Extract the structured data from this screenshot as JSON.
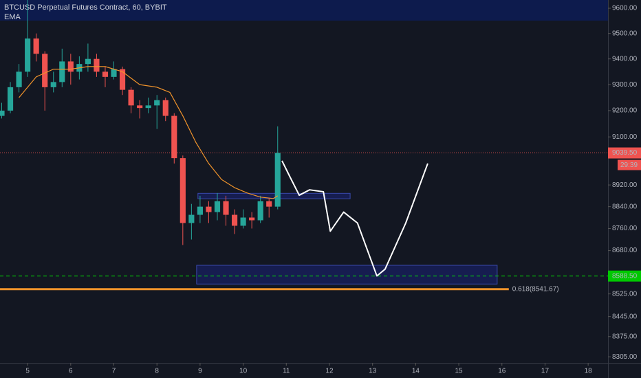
{
  "chart_data": {
    "type": "candlestick",
    "title": "BTCUSD Perpetual Futures Contract, 60, BYBIT",
    "indicator": "EMA",
    "log_scale": true,
    "colors": {
      "up": "#26a69a",
      "down": "#ef5350",
      "ema": "#f0932b",
      "drawing": "#ffffff",
      "zone": "#1a237e"
    },
    "x": [
      4.4,
      4.6,
      4.8,
      5.0,
      5.2,
      5.4,
      5.6,
      5.8,
      6.0,
      6.2,
      6.4,
      6.6,
      6.8,
      7.0,
      7.2,
      7.4,
      7.6,
      7.8,
      8.0,
      8.2,
      8.4,
      8.6,
      8.8,
      9.0,
      9.2,
      9.4,
      9.6,
      9.8,
      10.0,
      10.2,
      10.4,
      10.6,
      10.8
    ],
    "open": [
      9180,
      9200,
      9290,
      9350,
      9480,
      9420,
      9290,
      9310,
      9390,
      9350,
      9380,
      9400,
      9350,
      9330,
      9360,
      9280,
      9220,
      9210,
      9220,
      9240,
      9180,
      9020,
      8780,
      8810,
      8840,
      8820,
      8860,
      8810,
      8770,
      8800,
      8790,
      8860,
      8840
    ],
    "high": [
      9230,
      9310,
      9380,
      9640,
      9500,
      9430,
      9350,
      9440,
      9420,
      9410,
      9460,
      9420,
      9370,
      9390,
      9370,
      9290,
      9240,
      9250,
      9260,
      9250,
      9190,
      9030,
      8850,
      8880,
      8860,
      8890,
      8880,
      8830,
      8830,
      8820,
      8880,
      8870,
      9140
    ],
    "low": [
      9170,
      9190,
      9270,
      9330,
      9390,
      9200,
      9270,
      9290,
      9300,
      9320,
      9350,
      9330,
      9290,
      9320,
      9260,
      9190,
      9170,
      9190,
      9130,
      9160,
      9000,
      8700,
      8720,
      8780,
      8780,
      8790,
      8770,
      8740,
      8760,
      8760,
      8780,
      8800,
      8830
    ],
    "close": [
      9200,
      9290,
      9350,
      9480,
      9420,
      9290,
      9310,
      9390,
      9350,
      9380,
      9400,
      9350,
      9330,
      9360,
      9280,
      9220,
      9210,
      9220,
      9240,
      9180,
      9020,
      8780,
      8810,
      8840,
      8820,
      8860,
      8810,
      8770,
      8800,
      8790,
      8860,
      8840,
      9039.5
    ],
    "ema": {
      "x": [
        4.8,
        5.2,
        5.6,
        6.0,
        6.4,
        6.8,
        7.2,
        7.6,
        8.0,
        8.3,
        8.6,
        8.9,
        9.2,
        9.5,
        9.8,
        10.1,
        10.4,
        10.7,
        10.8
      ],
      "values": [
        9250,
        9330,
        9360,
        9360,
        9370,
        9370,
        9350,
        9300,
        9290,
        9270,
        9180,
        9080,
        9000,
        8940,
        8910,
        8890,
        8875,
        8870,
        8880
      ]
    },
    "drawing": {
      "x": [
        10.9,
        11.06,
        11.3,
        11.54,
        11.86,
        12.02,
        12.33,
        12.65,
        13.1,
        13.29,
        13.77,
        14.28
      ],
      "y": [
        9010,
        8958,
        8882,
        8902,
        8895,
        8750,
        8820,
        8780,
        8589,
        8613,
        8780,
        9000
      ]
    },
    "zones": [
      {
        "x": [
          8.95,
          12.48
        ],
        "y": [
          8889,
          8869
        ]
      },
      {
        "x": [
          8.92,
          15.89
        ],
        "y": [
          8627,
          8560
        ]
      }
    ],
    "last_price": {
      "value": 9039.5,
      "label": "9039.50",
      "countdown": "29:39"
    },
    "support_line": {
      "value": 8588.5,
      "label": "8588.50"
    },
    "fib_line": {
      "value": 8541.67,
      "label": "0.618(8541.67)",
      "x_end": 16.16
    },
    "xlim": [
      4.36,
      18.46
    ],
    "xticks": [
      5,
      6,
      7,
      8,
      9,
      10,
      11,
      12,
      13,
      14,
      15,
      16,
      17,
      18
    ],
    "ylim": [
      8284,
      9633
    ],
    "yticks": [
      {
        "value": 9600,
        "label": "9600.00"
      },
      {
        "value": 9500,
        "label": "9500.00"
      },
      {
        "value": 9400,
        "label": "9400.00"
      },
      {
        "value": 9300,
        "label": "9300.00"
      },
      {
        "value": 9200,
        "label": "9200.00"
      },
      {
        "value": 9100,
        "label": "9100.00"
      },
      {
        "value": 8920,
        "label": "8920.00"
      },
      {
        "value": 8840,
        "label": "8840.00"
      },
      {
        "value": 8760,
        "label": "8760.00"
      },
      {
        "value": 8680,
        "label": "8680.00"
      },
      {
        "value": 8525,
        "label": "8525.00"
      },
      {
        "value": 8445,
        "label": "8445.00"
      },
      {
        "value": 8375,
        "label": "8375.00"
      },
      {
        "value": 8305,
        "label": "8305.00"
      }
    ]
  }
}
